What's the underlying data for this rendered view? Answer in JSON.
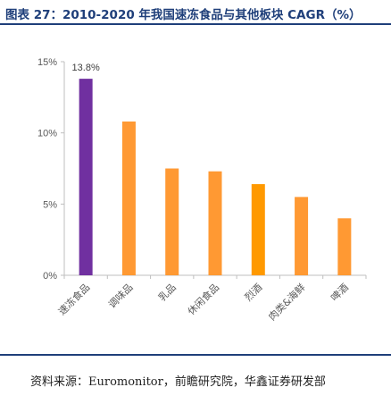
{
  "header": {
    "title": "图表 27：2010-2020 年我国速冻食品与其他板块 CAGR（%）"
  },
  "chart_data": {
    "type": "bar",
    "categories": [
      "速冻食品",
      "调味品",
      "乳品",
      "休闲食品",
      "烈酒",
      "肉类&海鲜",
      "啤酒"
    ],
    "values": [
      13.8,
      10.8,
      7.5,
      7.3,
      6.4,
      5.5,
      4.0
    ],
    "value_labels": [
      "13.8%",
      "",
      "",
      "",
      "",
      "",
      ""
    ],
    "bar_colors": [
      "#7030a0",
      "#ff9933",
      "#ff9933",
      "#ff9933",
      "#ff9900",
      "#ff9933",
      "#ff9933"
    ],
    "y_ticks": [
      {
        "value": 0,
        "label": "0%"
      },
      {
        "value": 5,
        "label": "5%"
      },
      {
        "value": 10,
        "label": "10%"
      },
      {
        "value": 15,
        "label": "15%"
      }
    ],
    "ylim": [
      0,
      15
    ],
    "grid": false,
    "title": "",
    "xlabel": "",
    "ylabel": ""
  },
  "footer": {
    "source": "资料来源：Euromonitor，前瞻研究院，华鑫证券研发部"
  }
}
